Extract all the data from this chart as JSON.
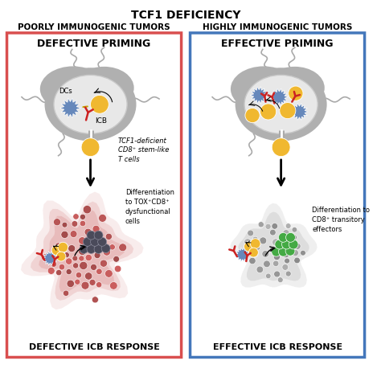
{
  "title": "TCF1 DEFICIENCY",
  "left_header": "POORLY IMMUNOGENIC TUMORS",
  "right_header": "HIGHLY IMMUNOGENIC TUMORS",
  "left_top_label": "DEFECTIVE PRIMING",
  "right_top_label": "EFFECTIVE PRIMING",
  "left_bottom_label": "DEFECTIVE ICB RESPONSE",
  "right_bottom_label": "EFFECTIVE ICB RESPONSE",
  "left_annotation1": "TCF1-deficient\nCD8⁺ stem-like\nT cells",
  "left_annotation2": "Differentiation\nto TOX⁺CD8⁺\ndysfunctional\ncells",
  "right_annotation": "Differentiation to\nCD8⁺ transitory\neffectors",
  "dc_label": "DCs",
  "icb_label": "ICB",
  "left_box_edge": "#d94f4f",
  "right_box_edge": "#4477bb",
  "bg_color": "#ffffff",
  "title_fontsize": 10,
  "header_fontsize": 7.5,
  "priming_fontsize": 9,
  "response_fontsize": 8,
  "annotation_fontsize": 6,
  "lymph_outer": "#b0b0b0",
  "lymph_inner": "#e8e8e8",
  "lymph_ring": "#c8c8c8",
  "dc_color": "#6688bb",
  "tcell_color": "#f0b830",
  "dysfunc_color": "#4a4a5a",
  "effector_color": "#44aa44",
  "tumor_left_color": "#cc6666",
  "antibody_color": "#cc2222",
  "vessel_color": "#aaaaaa"
}
